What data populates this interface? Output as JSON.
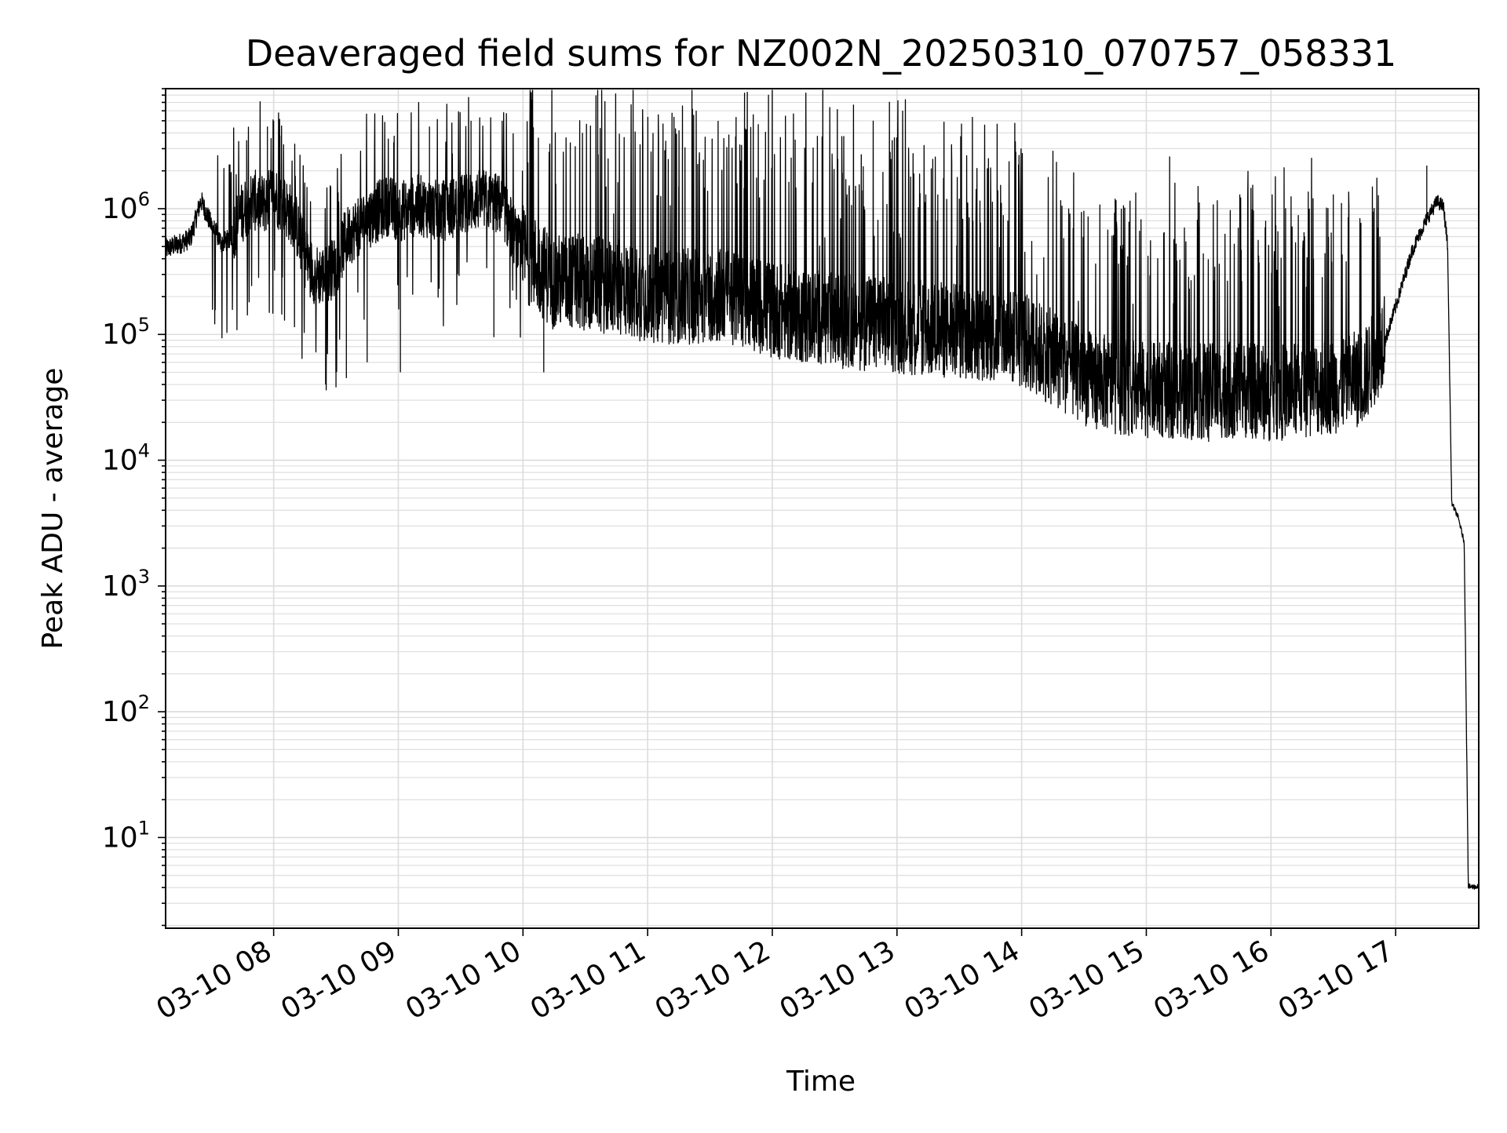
{
  "chart_data": {
    "type": "line",
    "title": "Deaveraged field sums for NZ002N_20250310_070757_058331",
    "xlabel": "Time",
    "ylabel": "Peak ADU - average",
    "yscale": "log",
    "xlim": [
      "03-10 07:08",
      "03-10 17:40"
    ],
    "ylim": [
      1.9,
      9000000
    ],
    "grid": true,
    "x_ticks": [
      {
        "label": "03-10 08",
        "value": "03-10 08:00"
      },
      {
        "label": "03-10 09",
        "value": "03-10 09:00"
      },
      {
        "label": "03-10 10",
        "value": "03-10 10:00"
      },
      {
        "label": "03-10 11",
        "value": "03-10 11:00"
      },
      {
        "label": "03-10 12",
        "value": "03-10 12:00"
      },
      {
        "label": "03-10 13",
        "value": "03-10 13:00"
      },
      {
        "label": "03-10 14",
        "value": "03-10 14:00"
      },
      {
        "label": "03-10 15",
        "value": "03-10 15:00"
      },
      {
        "label": "03-10 16",
        "value": "03-10 16:00"
      },
      {
        "label": "03-10 17",
        "value": "03-10 17:00"
      }
    ],
    "y_ticks": [
      {
        "base": "10",
        "exp": "1",
        "value": 10
      },
      {
        "base": "10",
        "exp": "2",
        "value": 100
      },
      {
        "base": "10",
        "exp": "3",
        "value": 1000
      },
      {
        "base": "10",
        "exp": "4",
        "value": 10000
      },
      {
        "base": "10",
        "exp": "5",
        "value": 100000
      },
      {
        "base": "10",
        "exp": "6",
        "value": 1000000
      }
    ],
    "series": [
      {
        "color": "#000000",
        "x": [
          "03-10 07:08",
          "03-10 07:15",
          "03-10 07:20",
          "03-10 07:25",
          "03-10 07:30",
          "03-10 07:35",
          "03-10 07:40",
          "03-10 07:45",
          "03-10 07:50",
          "03-10 07:55",
          "03-10 08:00",
          "03-10 08:05",
          "03-10 08:10",
          "03-10 08:15",
          "03-10 08:20",
          "03-10 08:25",
          "03-10 08:30",
          "03-10 08:35",
          "03-10 08:40",
          "03-10 08:45",
          "03-10 08:50",
          "03-10 08:55",
          "03-10 09:00",
          "03-10 09:10",
          "03-10 09:20",
          "03-10 09:30",
          "03-10 09:40",
          "03-10 09:50",
          "03-10 10:00",
          "03-10 10:15",
          "03-10 10:30",
          "03-10 10:45",
          "03-10 11:00",
          "03-10 11:15",
          "03-10 11:30",
          "03-10 11:45",
          "03-10 12:00",
          "03-10 12:30",
          "03-10 13:00",
          "03-10 13:30",
          "03-10 13:50",
          "03-10 14:00",
          "03-10 14:15",
          "03-10 14:30",
          "03-10 14:45",
          "03-10 15:00",
          "03-10 15:15",
          "03-10 15:30",
          "03-10 15:45",
          "03-10 16:00",
          "03-10 16:15",
          "03-10 16:30",
          "03-10 16:45",
          "03-10 16:52",
          "03-10 17:00",
          "03-10 17:08",
          "03-10 17:15",
          "03-10 17:20",
          "03-10 17:23",
          "03-10 17:25",
          "03-10 17:27",
          "03-10 17:30",
          "03-10 17:33",
          "03-10 17:35",
          "03-10 17:38",
          "03-10 17:40"
        ],
        "y": [
          450000,
          500000,
          550000,
          1100000,
          700000,
          500000,
          550000,
          800000,
          1000000,
          900000,
          1100000,
          900000,
          700000,
          350000,
          250000,
          250000,
          300000,
          500000,
          600000,
          700000,
          800000,
          900000,
          800000,
          900000,
          800000,
          900000,
          1000000,
          900000,
          350000,
          200000,
          200000,
          180000,
          160000,
          150000,
          160000,
          150000,
          120000,
          100000,
          90000,
          80000,
          75000,
          70000,
          50000,
          35000,
          30000,
          28000,
          27000,
          27000,
          28000,
          26000,
          28000,
          30000,
          35000,
          60000,
          160000,
          450000,
          800000,
          1100000,
          1000000,
          500000,
          4500,
          3500,
          2200,
          4,
          4,
          4
        ],
        "spikes": [
          {
            "x": "03-10 07:47",
            "y": 3500000
          },
          {
            "x": "03-10 07:57",
            "y": 4500000
          },
          {
            "x": "03-10 08:00",
            "y": 5000000
          },
          {
            "x": "03-10 08:03",
            "y": 3800000
          },
          {
            "x": "03-10 08:25",
            "y": 40000
          },
          {
            "x": "03-10 08:30",
            "y": 38000
          },
          {
            "x": "03-10 08:35",
            "y": 45000
          },
          {
            "x": "03-10 08:45",
            "y": 60000
          },
          {
            "x": "03-10 08:58",
            "y": 3800000
          },
          {
            "x": "03-10 09:01",
            "y": 50000
          },
          {
            "x": "03-10 09:15",
            "y": 4500000
          },
          {
            "x": "03-10 09:35",
            "y": 5000000
          },
          {
            "x": "03-10 09:46",
            "y": 95000
          },
          {
            "x": "03-10 09:52",
            "y": 4500000
          },
          {
            "x": "03-10 10:10",
            "y": 50000
          },
          {
            "x": "03-10 10:40",
            "y": 1500000
          },
          {
            "x": "03-10 11:15",
            "y": 1500000
          },
          {
            "x": "03-10 11:45",
            "y": 1600000
          },
          {
            "x": "03-10 12:40",
            "y": 1400000
          },
          {
            "x": "03-10 13:30",
            "y": 1200000
          },
          {
            "x": "03-10 14:45",
            "y": 1200000
          },
          {
            "x": "03-10 15:10",
            "y": 18000
          },
          {
            "x": "03-10 15:30",
            "y": 14000
          },
          {
            "x": "03-10 15:45",
            "y": 1300000
          },
          {
            "x": "03-10 16:30",
            "y": 1300000
          },
          {
            "x": "03-10 17:15",
            "y": 2200000
          }
        ]
      }
    ]
  }
}
